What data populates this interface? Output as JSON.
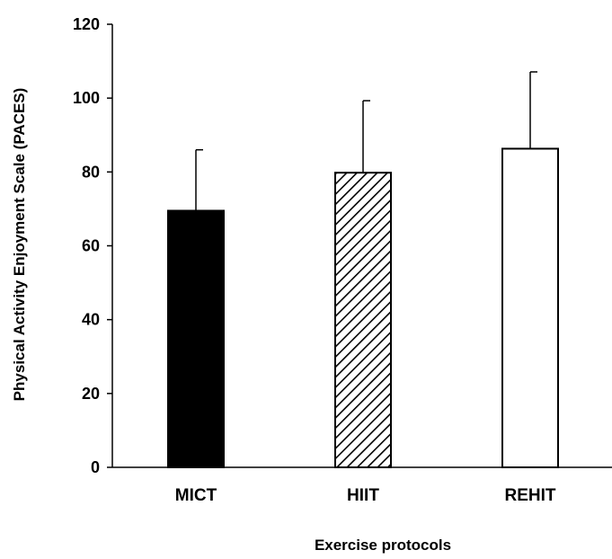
{
  "chart_data": {
    "type": "bar",
    "title": "",
    "xlabel": "Exercise protocols",
    "ylabel": "Physical Activity Enjoyment Scale (PACES)",
    "categories": [
      "MICT",
      "HIIT",
      "REHIT"
    ],
    "values": [
      69.5,
      79.8,
      86.3
    ],
    "error_plus": [
      16.5,
      19.5,
      20.8
    ],
    "fills": [
      "solid-black",
      "diagonal-hatch",
      "white"
    ],
    "ylim": [
      0,
      120
    ],
    "yticks": [
      "0",
      "20",
      "40",
      "60",
      "80",
      "100",
      "120"
    ],
    "grid": false,
    "legend": "none"
  }
}
